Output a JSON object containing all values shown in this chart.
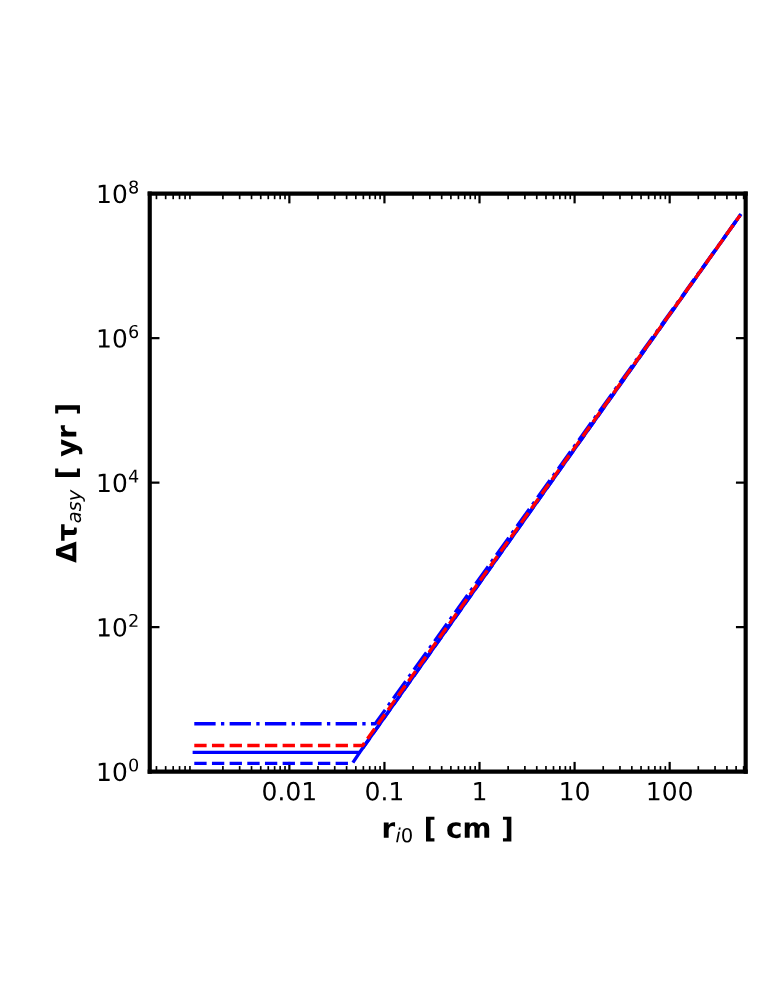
{
  "chart_data": {
    "type": "line",
    "xlabel": "r$_{i0}$ [ cm ]",
    "ylabel": "Δτ$_{asy}$ [ yr ]",
    "log": "xy",
    "xlim": [
      0.00034,
      630
    ],
    "ylim": [
      1,
      100000000
    ],
    "xticks": [
      0.01,
      0.1,
      1,
      10,
      100
    ],
    "yticks": [
      {
        "value": 1,
        "label": "10$^{0}$"
      },
      {
        "value": 100,
        "label": "10$^{2}$"
      },
      {
        "value": 10000,
        "label": "10$^{4}$"
      },
      {
        "value": 1000000,
        "label": "10$^{6}$"
      },
      {
        "value": 100000000,
        "label": "10$^{8}$"
      }
    ],
    "series": [
      {
        "color": "#0000ff",
        "line_style": "dashdot",
        "x": [
          0.001,
          0.08,
          550
        ],
        "values": [
          4.6,
          4.6,
          50000000
        ]
      },
      {
        "color": "#0000ff",
        "line_style": "dashed",
        "x": [
          0.001,
          0.046,
          0.055,
          550
        ],
        "values": [
          1.3,
          1.3,
          1.85,
          50000000
        ]
      },
      {
        "color": "#0000ff",
        "line_style": "solid",
        "x": [
          0.001,
          0.055,
          550
        ],
        "values": [
          1.85,
          1.85,
          50000000
        ]
      },
      {
        "color": "#ff0000",
        "line_style": "dashed",
        "x": [
          0.001,
          0.059,
          550
        ],
        "values": [
          2.3,
          2.3,
          50000000
        ]
      }
    ]
  }
}
